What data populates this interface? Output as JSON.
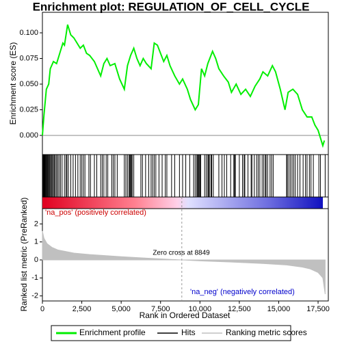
{
  "chart_data": [
    {
      "type": "line",
      "title": "Enrichment plot: REGULATION_OF_CELL_CYCLE",
      "ylabel": "Enrichment score (ES)",
      "name": "Enrichment profile",
      "color": "#00ee00",
      "x": [
        0,
        100,
        250,
        400,
        500,
        700,
        900,
        1100,
        1300,
        1400,
        1600,
        1800,
        2000,
        2200,
        2400,
        2600,
        2800,
        3000,
        3300,
        3500,
        3700,
        3900,
        4100,
        4300,
        4600,
        4900,
        5200,
        5400,
        5600,
        5800,
        6000,
        6200,
        6400,
        6600,
        6900,
        7100,
        7300,
        7500,
        7700,
        7900,
        8100,
        8400,
        8700,
        8900,
        9200,
        9400,
        9700,
        9900,
        10100,
        10300,
        10500,
        10800,
        11000,
        11200,
        11500,
        11800,
        12000,
        12300,
        12600,
        12900,
        13200,
        13500,
        13800,
        14000,
        14300,
        14600,
        14800,
        15100,
        15400,
        15600,
        15900,
        16200,
        16500,
        16800,
        17100,
        17300,
        17500,
        17800,
        17900
      ],
      "values": [
        0,
        0.02,
        0.045,
        0.05,
        0.065,
        0.072,
        0.07,
        0.08,
        0.09,
        0.088,
        0.108,
        0.098,
        0.095,
        0.09,
        0.085,
        0.088,
        0.08,
        0.078,
        0.072,
        0.065,
        0.058,
        0.07,
        0.075,
        0.068,
        0.07,
        0.055,
        0.045,
        0.068,
        0.078,
        0.085,
        0.075,
        0.068,
        0.075,
        0.07,
        0.065,
        0.09,
        0.088,
        0.08,
        0.072,
        0.078,
        0.068,
        0.058,
        0.05,
        0.055,
        0.045,
        0.035,
        0.025,
        0.03,
        0.065,
        0.058,
        0.07,
        0.082,
        0.075,
        0.065,
        0.058,
        0.052,
        0.042,
        0.05,
        0.04,
        0.045,
        0.038,
        0.048,
        0.055,
        0.062,
        0.058,
        0.068,
        0.062,
        0.045,
        0.025,
        0.042,
        0.045,
        0.04,
        0.025,
        0.018,
        0.018,
        0.01,
        0.005,
        -0.01,
        -0.005
      ],
      "xlim": [
        0,
        18150
      ],
      "ylim": [
        -0.0187,
        0.12
      ],
      "yticks": [
        {
          "value": 0,
          "label": "0.000"
        },
        {
          "value": 0.025,
          "label": "0.025"
        },
        {
          "value": 0.05,
          "label": "0.050"
        },
        {
          "value": 0.075,
          "label": "0.075"
        },
        {
          "value": 0.1,
          "label": "0.100"
        }
      ]
    },
    {
      "type": "hits",
      "name": "Hits",
      "color": "#000000",
      "xlim": [
        0,
        18150
      ],
      "values": [
        20,
        60,
        90,
        130,
        170,
        210,
        250,
        290,
        330,
        380,
        420,
        470,
        520,
        580,
        640,
        700,
        760,
        830,
        900,
        980,
        1060,
        1150,
        1250,
        1400,
        1500,
        1560,
        1650,
        1800,
        1950,
        2100,
        2250,
        2400,
        2500,
        2600,
        2700,
        2950,
        3050,
        3300,
        3450,
        3700,
        3800,
        3900,
        4050,
        4150,
        4400,
        4500,
        4600,
        4750,
        5200,
        5300,
        5400,
        5500,
        5550,
        5600,
        5650,
        5700,
        5800,
        6250,
        6350,
        6550,
        6750,
        6900,
        7000,
        7100,
        7200,
        7400,
        7600,
        7800,
        7900,
        8200,
        8400,
        8700,
        8900,
        9100,
        9350,
        9600,
        9700,
        9800,
        9850,
        9900,
        9950,
        10000,
        10050,
        10300,
        10400,
        10500,
        10550,
        10600,
        10700,
        10750,
        10850,
        11200,
        11400,
        11550,
        11700,
        11950,
        12150,
        12200,
        12250,
        12500,
        12700,
        12800,
        12850,
        13050,
        13250,
        13300,
        13450,
        13600,
        13700,
        13800,
        13950,
        14050,
        14150,
        14200,
        14300,
        14450,
        14550,
        14650,
        15500,
        15550,
        15650,
        15750,
        15850,
        15950,
        16050,
        16200,
        16350,
        16550,
        16700,
        16800,
        16950,
        17050,
        17200,
        17550,
        17650,
        17950
      ]
    },
    {
      "type": "area",
      "name": "Ranking metric scores",
      "ylabel": "Ranked list metric (PreRanked)",
      "xlabel": "Rank in Ordered Dataset",
      "color": "#c0c0c0",
      "x": [
        0,
        100,
        300,
        600,
        1000,
        2000,
        3000,
        5000,
        7000,
        8849,
        10000,
        12000,
        14000,
        15500,
        16500,
        17000,
        17500,
        17800,
        17950
      ],
      "values": [
        1.6,
        1.2,
        0.9,
        0.7,
        0.55,
        0.38,
        0.3,
        0.18,
        0.08,
        0,
        -0.05,
        -0.12,
        -0.2,
        -0.28,
        -0.4,
        -0.5,
        -0.7,
        -1.0,
        -1.9
      ],
      "xlim": [
        0,
        18150
      ],
      "ylim": [
        -2.28,
        2.85
      ],
      "xticks": [
        0,
        {
          "value": 2500,
          "label": "2,500"
        },
        {
          "value": 5000,
          "label": "5,000"
        },
        {
          "value": 7500,
          "label": "7,500"
        },
        {
          "value": 10000,
          "label": "10,000"
        },
        {
          "value": 12500,
          "label": "12,500"
        },
        {
          "value": 15000,
          "label": "15,000"
        },
        {
          "value": 17500,
          "label": "17,500"
        }
      ],
      "yticks": [
        -2,
        -1,
        0,
        1,
        2
      ],
      "zero_cross": 8849,
      "zero_label": "Zero cross at 8849",
      "pos_label": "'na_pos' (positively correlated)",
      "neg_label": "'na_neg' (negatively correlated)"
    }
  ]
}
